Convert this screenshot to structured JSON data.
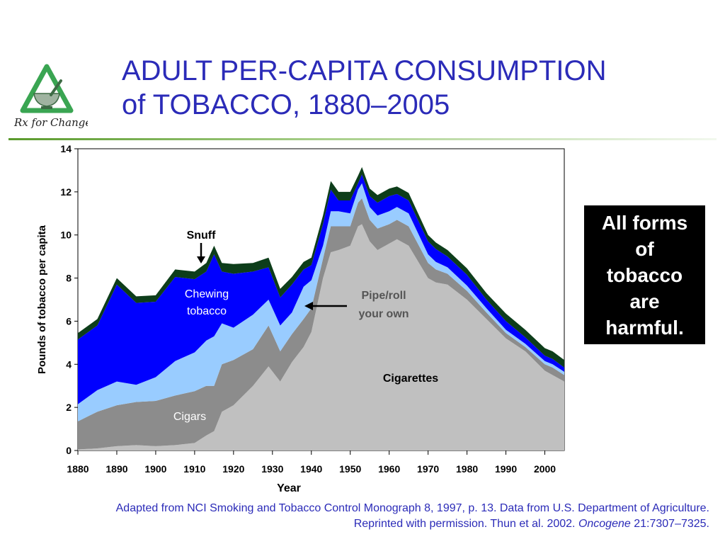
{
  "slide": {
    "title_line1": "ADULT PER-CAPITA CONSUMPTION",
    "title_line2": "of TOBACCO, 1880–2005",
    "logo_text": "Rx for Change",
    "callout_lines": [
      "All forms",
      "of",
      "tobacco",
      "are",
      "harmful."
    ],
    "source_line1": "Adapted from NCI Smoking and Tobacco Control Monograph 8, 1997, p. 13. Data from U.S. Department of Agriculture.",
    "source_line2_pre": "Reprinted with permission. Thun et al. 2002. ",
    "source_journal": "Oncogene",
    "source_line2_post": " 21:7307–7325."
  },
  "chart_data": {
    "type": "area",
    "stacked": true,
    "xlabel": "Year",
    "ylabel": "Pounds of tobacco per capita",
    "xlim": [
      1880,
      2005
    ],
    "ylim": [
      0,
      14
    ],
    "xticks": [
      1880,
      1890,
      1900,
      1910,
      1920,
      1930,
      1940,
      1950,
      1960,
      1970,
      1980,
      1990,
      2000
    ],
    "yticks": [
      0,
      2,
      4,
      6,
      8,
      10,
      12,
      14
    ],
    "grid": false,
    "x": [
      1880,
      1885,
      1890,
      1895,
      1900,
      1905,
      1910,
      1913,
      1915,
      1917,
      1920,
      1925,
      1929,
      1932,
      1935,
      1938,
      1940,
      1943,
      1945,
      1947,
      1950,
      1952,
      1953,
      1955,
      1957,
      1960,
      1962,
      1965,
      1970,
      1972,
      1975,
      1980,
      1985,
      1990,
      1995,
      2000,
      2002,
      2005
    ],
    "series": [
      {
        "name": "Cigarettes",
        "color": "#c0c0c0",
        "values": [
          0.05,
          0.1,
          0.2,
          0.25,
          0.2,
          0.25,
          0.35,
          0.7,
          0.9,
          1.8,
          2.1,
          3.0,
          3.9,
          3.2,
          4.1,
          4.8,
          5.5,
          8.0,
          9.2,
          9.3,
          9.5,
          10.4,
          10.5,
          9.7,
          9.3,
          9.6,
          9.8,
          9.5,
          8.0,
          7.8,
          7.7,
          7.0,
          6.1,
          5.2,
          4.6,
          3.7,
          3.5,
          3.2
        ]
      },
      {
        "name": "Cigars",
        "color": "#8c8c8c",
        "values": [
          1.3,
          1.7,
          1.9,
          2.0,
          2.1,
          2.3,
          2.4,
          2.3,
          2.1,
          2.2,
          2.1,
          1.7,
          1.9,
          1.4,
          1.3,
          1.3,
          1.1,
          0.9,
          1.2,
          1.1,
          0.9,
          1.1,
          1.2,
          1.0,
          1.0,
          0.9,
          0.9,
          0.9,
          0.7,
          0.6,
          0.5,
          0.4,
          0.3,
          0.25,
          0.2,
          0.3,
          0.35,
          0.3
        ]
      },
      {
        "name": "Pipe/roll your own",
        "color": "#99ccff",
        "values": [
          0.8,
          1.0,
          1.1,
          0.8,
          1.1,
          1.6,
          1.8,
          2.1,
          2.3,
          1.9,
          1.5,
          1.6,
          1.2,
          1.2,
          1.0,
          1.5,
          1.3,
          0.6,
          0.7,
          0.7,
          0.6,
          0.6,
          0.7,
          0.6,
          0.6,
          0.6,
          0.6,
          0.6,
          0.4,
          0.35,
          0.3,
          0.25,
          0.2,
          0.15,
          0.15,
          0.15,
          0.15,
          0.15
        ]
      },
      {
        "name": "Chewing tobacco",
        "color": "#0000ff",
        "values": [
          3.0,
          3.0,
          4.5,
          3.8,
          3.5,
          3.9,
          3.4,
          3.2,
          3.8,
          2.4,
          2.5,
          2.0,
          1.5,
          1.3,
          1.3,
          0.8,
          0.7,
          1.0,
          1.0,
          0.5,
          0.6,
          0.3,
          0.4,
          0.5,
          0.6,
          0.7,
          0.6,
          0.6,
          0.6,
          0.6,
          0.5,
          0.5,
          0.4,
          0.4,
          0.3,
          0.25,
          0.25,
          0.2
        ]
      },
      {
        "name": "Snuff",
        "color": "#0d3d1a",
        "values": [
          0.3,
          0.3,
          0.3,
          0.3,
          0.3,
          0.35,
          0.35,
          0.4,
          0.4,
          0.4,
          0.45,
          0.4,
          0.45,
          0.4,
          0.35,
          0.35,
          0.35,
          0.4,
          0.4,
          0.4,
          0.4,
          0.35,
          0.35,
          0.35,
          0.35,
          0.35,
          0.35,
          0.35,
          0.3,
          0.3,
          0.3,
          0.3,
          0.3,
          0.35,
          0.35,
          0.35,
          0.35,
          0.35
        ]
      }
    ],
    "annotations": [
      {
        "text": "Snuff",
        "series": "Snuff"
      },
      {
        "text_line1": "Chewing",
        "text_line2": "tobacco",
        "series": "Chewing tobacco"
      },
      {
        "text_line1": "Pipe/roll",
        "text_line2": "your own",
        "series": "Pipe/roll your own"
      },
      {
        "text": "Cigarettes",
        "series": "Cigarettes"
      },
      {
        "text": "Cigars",
        "series": "Cigars"
      }
    ]
  }
}
